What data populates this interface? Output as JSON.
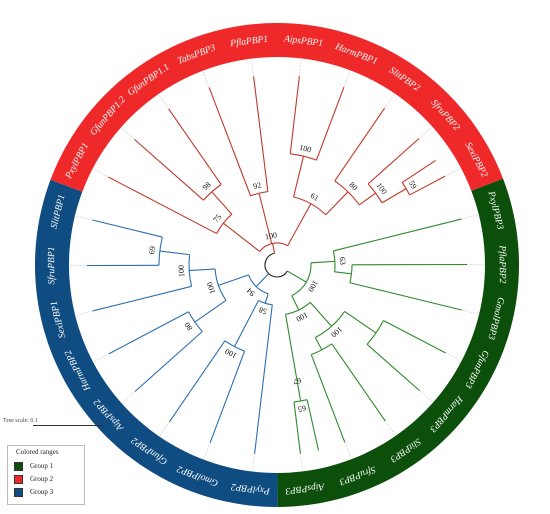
{
  "groups": [
    {
      "key": "g1",
      "name": "Group 1",
      "color": "#0b4f0b",
      "branch_color": "#2f8a2f"
    },
    {
      "key": "g2",
      "name": "Group 2",
      "color": "#ef2929",
      "branch_color": "#c0392b"
    },
    {
      "key": "g3",
      "name": "Group 3",
      "color": "#0f4c81",
      "branch_color": "#2c6fb0"
    }
  ],
  "legend": {
    "title": "Colored ranges"
  },
  "scale": {
    "label": "Tree scale: 0.1"
  },
  "leaves": [
    {
      "name": "PxylPBP3",
      "group": "g1"
    },
    {
      "name": "PflaPBP2",
      "group": "g1"
    },
    {
      "name": "GmolPBP3",
      "group": "g1"
    },
    {
      "name": "GfunPBP3",
      "group": "g1"
    },
    {
      "name": "HarmPBP3",
      "group": "g1"
    },
    {
      "name": "SlitPBP3",
      "group": "g1"
    },
    {
      "name": "SfruPBP3",
      "group": "g1"
    },
    {
      "name": "AipsPBP3",
      "group": "g1"
    },
    {
      "name": "PxylPBP2",
      "group": "g3"
    },
    {
      "name": "GmolPBP2",
      "group": "g3"
    },
    {
      "name": "GfunPBP2",
      "group": "g3"
    },
    {
      "name": "AipsPBP2",
      "group": "g3"
    },
    {
      "name": "HarmPBP2",
      "group": "g3"
    },
    {
      "name": "SexiPBP1",
      "group": "g3"
    },
    {
      "name": "SfruPBP1",
      "group": "g3"
    },
    {
      "name": "SlitPBP1",
      "group": "g3"
    },
    {
      "name": "PxylPBP1",
      "group": "g2"
    },
    {
      "name": "GfunPBP1.2",
      "group": "g2"
    },
    {
      "name": "GfunPBP1.1",
      "group": "g2"
    },
    {
      "name": "TabsPBP3",
      "group": "g2"
    },
    {
      "name": "PflaPBP1",
      "group": "g2"
    },
    {
      "name": "AipsPBP1",
      "group": "g2"
    },
    {
      "name": "HarmPBP1",
      "group": "g2"
    },
    {
      "name": "SlitPBP2",
      "group": "g2"
    },
    {
      "name": "SfruPBP2",
      "group": "g2"
    },
    {
      "name": "SexiPBP2",
      "group": "g2"
    }
  ],
  "bootstrap": [
    "100",
    "63",
    "100",
    "100",
    "67",
    "65",
    "94",
    "58",
    "100",
    "100",
    "80",
    "100",
    "69",
    "100",
    "75",
    "98",
    "92",
    "61",
    "100",
    "80",
    "100",
    "59"
  ]
}
